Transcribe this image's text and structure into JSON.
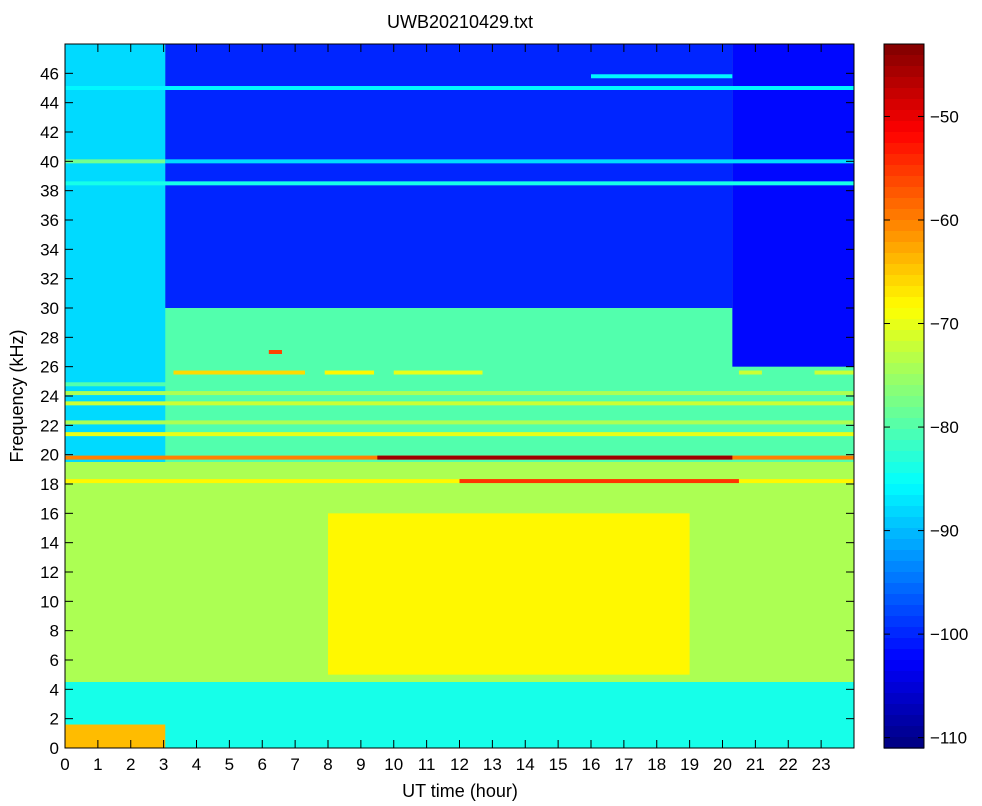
{
  "chart_data": {
    "type": "heatmap",
    "title": "UWB20210429.txt",
    "xlabel": "UT time (hour)",
    "ylabel": "Frequency (kHz)",
    "xlim": [
      0,
      24
    ],
    "ylim": [
      0,
      48
    ],
    "x_ticks": [
      "0",
      "1",
      "2",
      "3",
      "4",
      "5",
      "6",
      "7",
      "8",
      "9",
      "10",
      "11",
      "12",
      "13",
      "14",
      "15",
      "16",
      "17",
      "18",
      "19",
      "20",
      "21",
      "22",
      "23"
    ],
    "y_ticks": [
      "0",
      "2",
      "4",
      "6",
      "8",
      "10",
      "12",
      "14",
      "16",
      "18",
      "20",
      "22",
      "24",
      "26",
      "28",
      "30",
      "32",
      "34",
      "36",
      "38",
      "40",
      "42",
      "44",
      "46"
    ],
    "colorbar": {
      "colormap": "jet",
      "range": [
        -111,
        -43
      ],
      "ticks": [
        "-50",
        "-60",
        "-70",
        "-80",
        "-90",
        "-100",
        "-110"
      ]
    },
    "regions": [
      {
        "x": [
          0,
          3.05
        ],
        "y": [
          4.5,
          48
        ],
        "level": -88
      },
      {
        "x": [
          3.05,
          20.3
        ],
        "y": [
          30,
          48
        ],
        "level": -100
      },
      {
        "x": [
          20.3,
          24
        ],
        "y": [
          26,
          48
        ],
        "level": -102
      },
      {
        "x": [
          0,
          24
        ],
        "y": [
          0,
          4.5
        ],
        "level": -84
      },
      {
        "x": [
          0,
          24
        ],
        "y": [
          4.5,
          19.5
        ],
        "level": -74
      },
      {
        "x": [
          8,
          19
        ],
        "y": [
          5,
          16
        ],
        "level": -68
      },
      {
        "x": [
          0,
          3.05
        ],
        "y": [
          0,
          1.6
        ],
        "level": -64
      }
    ],
    "tone_lines": [
      {
        "freq_khz": 19.8,
        "x": [
          0,
          24
        ],
        "level": -60
      },
      {
        "freq_khz": 19.8,
        "x": [
          9.5,
          20.3
        ],
        "level": -45
      },
      {
        "freq_khz": 18.2,
        "x": [
          0,
          24
        ],
        "level": -68
      },
      {
        "freq_khz": 18.2,
        "x": [
          12,
          20.5
        ],
        "level": -55
      },
      {
        "freq_khz": 21.4,
        "x": [
          0,
          24
        ],
        "level": -70
      },
      {
        "freq_khz": 22.2,
        "x": [
          0,
          24
        ],
        "level": -74
      },
      {
        "freq_khz": 23.5,
        "x": [
          0,
          24
        ],
        "level": -72
      },
      {
        "freq_khz": 24.2,
        "x": [
          0,
          24
        ],
        "level": -74
      },
      {
        "freq_khz": 24.8,
        "x": [
          0,
          24
        ],
        "level": -80
      },
      {
        "freq_khz": 25.6,
        "x": [
          3.3,
          7.3
        ],
        "level": -66
      },
      {
        "freq_khz": 25.6,
        "x": [
          7.9,
          9.4
        ],
        "level": -68
      },
      {
        "freq_khz": 25.6,
        "x": [
          10,
          12.7
        ],
        "level": -70
      },
      {
        "freq_khz": 25.6,
        "x": [
          20.5,
          21.2
        ],
        "level": -72
      },
      {
        "freq_khz": 25.6,
        "x": [
          22.8,
          24
        ],
        "level": -72
      },
      {
        "freq_khz": 27.0,
        "x": [
          6.2,
          6.6
        ],
        "level": -56
      },
      {
        "freq_khz": 38.5,
        "x": [
          0,
          24
        ],
        "level": -84
      },
      {
        "freq_khz": 40.0,
        "x": [
          0,
          3.05
        ],
        "level": -78
      },
      {
        "freq_khz": 40.0,
        "x": [
          3.05,
          24
        ],
        "level": -88
      },
      {
        "freq_khz": 45.0,
        "x": [
          0,
          24
        ],
        "level": -86
      },
      {
        "freq_khz": 45.8,
        "x": [
          16,
          20.3
        ],
        "level": -86
      }
    ]
  }
}
